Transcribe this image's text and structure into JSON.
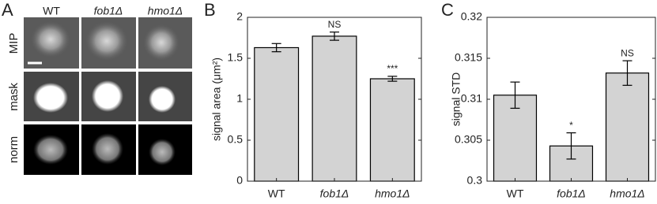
{
  "panel_a": {
    "label": "A",
    "columns": [
      "WT",
      "fob1Δ",
      "hmo1Δ"
    ],
    "rows": [
      "MIP",
      "mask",
      "norm"
    ]
  },
  "chart_data": [
    {
      "type": "bar",
      "label": "B",
      "ylabel": "signal area (μm²)",
      "categories": [
        "WT",
        "fob1Δ",
        "hmo1Δ"
      ],
      "values": [
        1.63,
        1.77,
        1.25
      ],
      "errors": [
        0.05,
        0.05,
        0.03
      ],
      "annotations": [
        null,
        "NS",
        "***"
      ],
      "color": "#d3d3d3",
      "ylim": [
        0,
        2
      ],
      "yticks": [
        0,
        0.5,
        1,
        1.5,
        2
      ]
    },
    {
      "type": "bar",
      "label": "C",
      "ylabel": "signal STD",
      "categories": [
        "WT",
        "fob1Δ",
        "hmo1Δ"
      ],
      "values": [
        0.3105,
        0.3043,
        0.3132
      ],
      "errors": [
        0.0016,
        0.0016,
        0.0015
      ],
      "annotations": [
        null,
        "*",
        "NS"
      ],
      "color": "#d3d3d3",
      "ylim": [
        0.3,
        0.32
      ],
      "yticks": [
        {
          "value": 0.3,
          "label": "0.3"
        },
        0.305,
        0.31,
        0.315,
        0.32
      ]
    }
  ]
}
